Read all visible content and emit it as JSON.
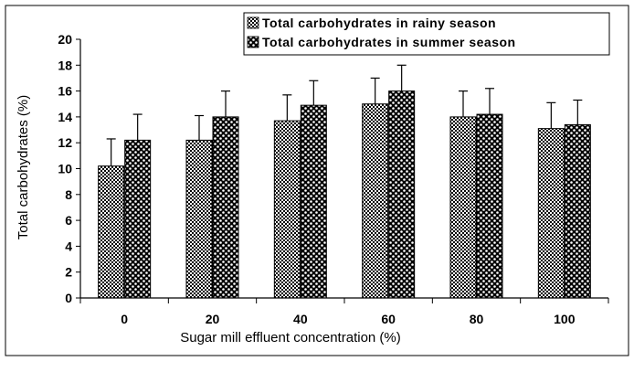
{
  "chart_data": {
    "type": "bar",
    "categories": [
      "0",
      "20",
      "40",
      "60",
      "80",
      "100"
    ],
    "series": [
      {
        "name": "Total carbohydrates in rainy season",
        "values": [
          10.2,
          12.2,
          13.7,
          15.0,
          14.0,
          13.1
        ],
        "errors": [
          2.1,
          1.9,
          2.0,
          2.0,
          2.0,
          2.0
        ],
        "pattern": "checker"
      },
      {
        "name": "Total carbohydrates in summer season",
        "values": [
          12.2,
          14.0,
          14.9,
          16.0,
          14.2,
          13.4
        ],
        "errors": [
          2.0,
          2.0,
          1.9,
          2.0,
          2.0,
          1.9
        ],
        "pattern": "dots"
      }
    ],
    "xlabel": "Sugar mill effluent concentration (%)",
    "ylabel": "Total carbohydrates (%)",
    "ylim": [
      0,
      20
    ],
    "yticks": [
      "0",
      "2",
      "4",
      "6",
      "8",
      "10",
      "12",
      "14",
      "16",
      "18",
      "20"
    ],
    "grid": false,
    "legend_position": "top-right",
    "colors": {
      "bar_fill": "#000000",
      "background": "#ffffff"
    }
  }
}
